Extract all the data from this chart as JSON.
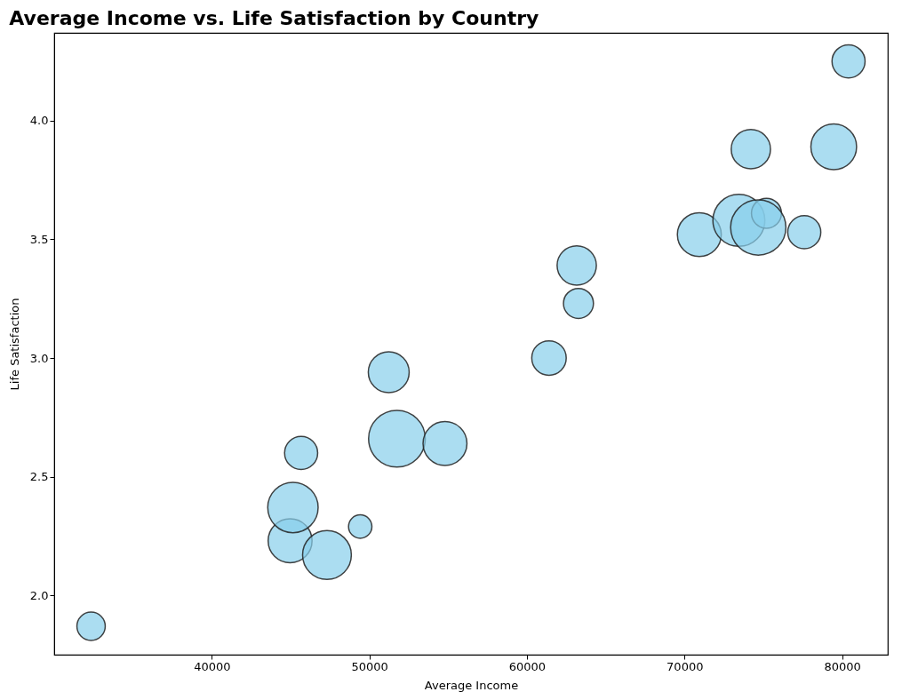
{
  "chart_data": {
    "type": "bubble",
    "title": "Average Income vs. Life Satisfaction by Country",
    "xlabel": "Average Income",
    "ylabel": "Life Satisfaction",
    "x": [
      32340,
      44970,
      45150,
      45670,
      47310,
      49420,
      51230,
      51750,
      54800,
      61400,
      63160,
      63270,
      70940,
      73450,
      75200,
      74680,
      77600,
      74210,
      79470,
      80410
    ],
    "series": [
      {
        "color": "#87ceeb",
        "values": [
          1.87,
          2.23,
          2.37,
          2.6,
          2.17,
          2.29,
          2.94,
          2.66,
          2.64,
          3.0,
          3.39,
          3.23,
          3.52,
          3.58,
          3.61,
          3.55,
          3.53,
          3.88,
          3.89,
          4.25
        ],
        "sizes": [
          0.25,
          0.6,
          0.79,
          0.34,
          0.74,
          0.17,
          0.52,
          1,
          0.6,
          0.37,
          0.48,
          0.28,
          0.6,
          0.84,
          0.28,
          0.95,
          0.34,
          0.48,
          0.65,
          0.34
        ]
      }
    ],
    "xlim": [
      30000,
      82900
    ],
    "ylim": [
      1.75,
      4.37
    ],
    "xticks": [
      40000,
      50000,
      60000,
      70000,
      80000
    ],
    "yticks": [
      {
        "value": 2,
        "label": "2.0"
      },
      2.5,
      {
        "value": 3,
        "label": "3.0"
      },
      3.5,
      {
        "value": 4,
        "label": "4.0"
      }
    ],
    "grid": false
  }
}
